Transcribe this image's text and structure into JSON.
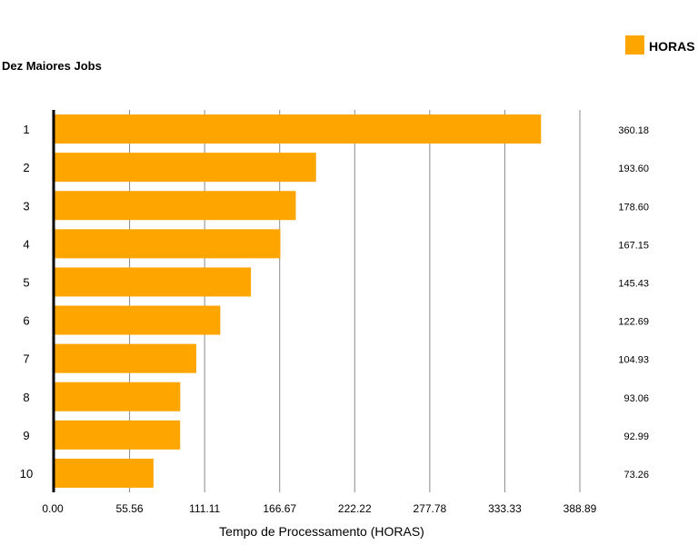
{
  "chart_data": {
    "type": "bar",
    "orientation": "horizontal",
    "title": "Dez Maiores Jobs",
    "xlabel": "Tempo de Processamento (HORAS)",
    "ylabel": "",
    "categories": [
      "1",
      "2",
      "3",
      "4",
      "5",
      "6",
      "7",
      "8",
      "9",
      "10"
    ],
    "series": [
      {
        "name": "HORAS",
        "color": "#FFA500",
        "values": [
          360.18,
          193.6,
          178.6,
          167.15,
          145.43,
          122.69,
          104.93,
          93.06,
          92.99,
          73.26
        ],
        "value_labels": [
          "360.18",
          "193.60",
          "178.60",
          "167.15",
          "145.43",
          "122.69",
          "104.93",
          "93.06",
          "92.99",
          "73.26"
        ]
      }
    ],
    "xticks": [
      "0.00",
      "55.56",
      "111.11",
      "166.67",
      "222.22",
      "277.78",
      "333.33",
      "388.89"
    ],
    "xlim": [
      0,
      388.89
    ],
    "grid": "vertical",
    "legend": "top-right"
  }
}
